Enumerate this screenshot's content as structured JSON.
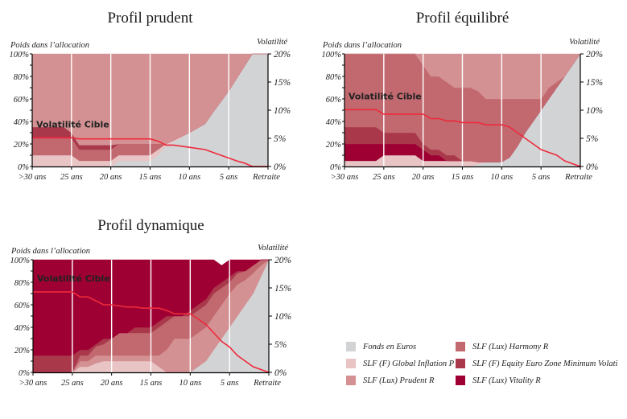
{
  "colors": {
    "fonds_euros": "#d2d3d5",
    "global_inflation": "#e8c4c5",
    "prudent": "#d49193",
    "harmony": "#c1696f",
    "equity_min_vol": "#a9384b",
    "vitality": "#9e0033",
    "volatility_line": "#ee2a3c",
    "target_label": "#ffffff"
  },
  "legend": [
    {
      "key": "fonds_euros",
      "label": "Fonds en Euros"
    },
    {
      "key": "global_inflation",
      "label": "SLF (F) Global Inflation P"
    },
    {
      "key": "prudent",
      "label": "SLF (Lux) Prudent R"
    },
    {
      "key": "harmony",
      "label": "SLF (Lux) Harmony R"
    },
    {
      "key": "equity_min_vol",
      "label": "SLF (F) Equity Euro Zone Minimum Volati"
    },
    {
      "key": "vitality",
      "label": "SLF (Lux) Vitality R"
    }
  ],
  "chart_data": [
    {
      "id": "prudent",
      "type": "area",
      "title": "Profil prudent",
      "ylabel": "Poids dans l’allocation",
      "y2label": "Volatilité",
      "target_label": "Volatilité Cible",
      "xlim": [
        30,
        0
      ],
      "ylim": [
        0,
        100
      ],
      "y2lim": [
        0,
        20
      ],
      "xticks": [
        30,
        25,
        20,
        15,
        10,
        5,
        0
      ],
      "xtick_labels": [
        ">30 ans",
        "25 ans",
        "20 ans",
        "15 ans",
        "10 ans",
        "5 ans",
        "Retraite"
      ],
      "yticks": [
        "0%",
        "20%",
        "40%",
        "60%",
        "80%",
        "100%"
      ],
      "y2ticks": [
        "0%",
        "5%",
        "10%",
        "15%",
        "20%"
      ],
      "x": [
        30,
        26,
        25,
        24,
        20,
        19,
        15,
        14,
        13,
        10,
        8,
        7,
        5,
        4,
        2,
        0
      ],
      "series": [
        {
          "name": "Fonds en Euros",
          "key": "fonds_euros",
          "values": [
            0,
            0,
            0,
            0,
            0,
            5,
            5,
            10,
            18,
            30,
            38,
            48,
            67,
            78,
            100,
            100
          ]
        },
        {
          "name": "SLF (F) Global Inflation P",
          "key": "global_inflation",
          "values": [
            10,
            10,
            10,
            5,
            5,
            5,
            5,
            5,
            2,
            0,
            0,
            0,
            0,
            0,
            0,
            0
          ]
        },
        {
          "name": "SLF (Lux) Harmony R",
          "key": "harmony",
          "values": [
            15,
            15,
            15,
            10,
            10,
            10,
            10,
            5,
            0,
            0,
            0,
            0,
            0,
            0,
            0,
            0
          ]
        },
        {
          "name": "SLF (F) Equity Euro Zone Minimum Volatility",
          "key": "equity_min_vol",
          "values": [
            10,
            10,
            5,
            4,
            4,
            0,
            0,
            0,
            0,
            0,
            0,
            0,
            0,
            0,
            0,
            0
          ]
        },
        {
          "name": "SLF (Lux) Prudent R",
          "key": "prudent",
          "values": [
            65,
            65,
            70,
            81,
            81,
            80,
            80,
            80,
            80,
            70,
            62,
            52,
            33,
            22,
            0,
            0
          ]
        }
      ],
      "volatility": {
        "x": [
          30,
          25,
          24,
          15,
          14,
          13,
          12,
          10,
          8,
          7,
          6,
          5,
          4,
          3,
          2,
          1,
          0
        ],
        "values": [
          5.1,
          5.1,
          4.9,
          4.9,
          4.5,
          3.8,
          3.8,
          3.4,
          3.0,
          2.5,
          2.0,
          1.5,
          1.0,
          0.6,
          0.0,
          0.0,
          0.0
        ]
      }
    },
    {
      "id": "equilibre",
      "type": "area",
      "title": "Profil équilibré",
      "ylabel": "Poids dans l’allocation",
      "y2label": "Volatilité",
      "target_label": "Volatilité Cible",
      "xlim": [
        30,
        0
      ],
      "ylim": [
        0,
        100
      ],
      "y2lim": [
        0,
        20
      ],
      "xticks": [
        30,
        25,
        20,
        15,
        10,
        5,
        0
      ],
      "xtick_labels": [
        ">30 ans",
        "25 ans",
        "20 ans",
        "15 ans",
        "10 ans",
        "5 ans",
        "Retraite"
      ],
      "yticks": [
        "0%",
        "20%",
        "40%",
        "60%",
        "80%",
        "100%"
      ],
      "y2ticks": [
        "0%",
        "5%",
        "10%",
        "15%",
        "20%"
      ],
      "x": [
        30,
        26,
        25,
        21,
        20,
        19,
        18,
        17,
        16,
        15,
        14,
        13,
        12,
        11,
        10,
        9,
        8,
        7,
        6,
        5,
        4,
        3,
        2,
        1,
        0
      ],
      "series": [
        {
          "name": "Fonds en Euros",
          "key": "fonds_euros",
          "values": [
            0,
            0,
            0,
            0,
            0,
            0,
            0,
            0,
            0,
            0,
            0,
            2,
            4,
            4,
            4,
            8,
            18,
            30,
            40,
            50,
            60,
            70,
            80,
            90,
            100
          ]
        },
        {
          "name": "SLF (F) Global Inflation P",
          "key": "global_inflation",
          "values": [
            5,
            5,
            10,
            10,
            5,
            5,
            5,
            5,
            5,
            5,
            5,
            2,
            0,
            0,
            0,
            0,
            0,
            0,
            0,
            0,
            0,
            0,
            0,
            0,
            0
          ]
        },
        {
          "name": "SLF (Lux) Vitality R",
          "key": "vitality",
          "values": [
            15,
            15,
            10,
            10,
            10,
            5,
            5,
            0,
            0,
            0,
            0,
            0,
            0,
            0,
            0,
            0,
            0,
            0,
            0,
            0,
            0,
            0,
            0,
            0,
            0
          ]
        },
        {
          "name": "SLF (F) Equity Euro Zone Minimum Volatility",
          "key": "equity_min_vol",
          "values": [
            15,
            15,
            10,
            10,
            5,
            5,
            5,
            5,
            5,
            0,
            0,
            0,
            0,
            0,
            0,
            0,
            0,
            0,
            0,
            0,
            0,
            0,
            0,
            0,
            0
          ]
        },
        {
          "name": "SLF (Lux) Harmony R",
          "key": "harmony",
          "values": [
            65,
            65,
            70,
            70,
            70,
            65,
            65,
            65,
            60,
            65,
            65,
            63,
            56,
            56,
            56,
            52,
            42,
            30,
            20,
            10,
            10,
            5,
            0,
            0,
            0
          ]
        },
        {
          "name": "SLF (Lux) Prudent R",
          "key": "prudent",
          "values": [
            0,
            0,
            0,
            0,
            10,
            20,
            20,
            25,
            30,
            30,
            30,
            33,
            40,
            40,
            40,
            40,
            40,
            40,
            40,
            40,
            30,
            25,
            20,
            10,
            0
          ]
        }
      ],
      "volatility": {
        "x": [
          30,
          26,
          25,
          20,
          19,
          18,
          17,
          16,
          15,
          13,
          12,
          10,
          9,
          8,
          7,
          6,
          5,
          4,
          3,
          2,
          1,
          0
        ],
        "values": [
          10.1,
          10.1,
          9.3,
          9.3,
          8.5,
          8.5,
          8.1,
          8.1,
          7.8,
          7.8,
          7.4,
          7.4,
          7.0,
          6.0,
          5.0,
          4.0,
          3.0,
          2.5,
          2.0,
          1.0,
          0.5,
          0.0
        ]
      }
    },
    {
      "id": "dynamique",
      "type": "area",
      "title": "Profil dynamique",
      "ylabel": "Poids dans l’allocation",
      "y2label": "Volatilité",
      "target_label": "Volatilité Cible",
      "xlim": [
        30,
        0
      ],
      "ylim": [
        0,
        100
      ],
      "y2lim": [
        0,
        20
      ],
      "xticks": [
        30,
        25,
        20,
        15,
        10,
        5,
        0
      ],
      "xtick_labels": [
        ">30 ans",
        "25 ans",
        "20 ans",
        "15 ans",
        "10 ans",
        "5 ans",
        "Retraite"
      ],
      "yticks": [
        "0%",
        "20%",
        "40%",
        "60%",
        "80%",
        "100%"
      ],
      "y2ticks": [
        "0%",
        "5%",
        "10%",
        "15%",
        "20%"
      ],
      "x": [
        30,
        25,
        24,
        23,
        22,
        21,
        20,
        19,
        18,
        17,
        16,
        15,
        14,
        13,
        12,
        11,
        10,
        9,
        8,
        7,
        6,
        5,
        4,
        3,
        2,
        1,
        0
      ],
      "series": [
        {
          "name": "Fonds en Euros",
          "key": "fonds_euros",
          "values": [
            0,
            0,
            0,
            0,
            0,
            0,
            0,
            0,
            0,
            0,
            0,
            0,
            0,
            0,
            0,
            0,
            0,
            5,
            10,
            20,
            30,
            40,
            50,
            60,
            70,
            85,
            100
          ]
        },
        {
          "name": "SLF (F) Global Inflation P",
          "key": "global_inflation",
          "values": [
            0,
            0,
            5,
            5,
            8,
            10,
            10,
            10,
            10,
            10,
            10,
            10,
            5,
            0,
            0,
            0,
            0,
            0,
            0,
            0,
            0,
            0,
            0,
            0,
            0,
            0,
            0
          ]
        },
        {
          "name": "SLF (Lux) Prudent R",
          "key": "prudent",
          "values": [
            0,
            0,
            5,
            5,
            7,
            5,
            5,
            5,
            5,
            5,
            5,
            5,
            10,
            20,
            30,
            30,
            30,
            30,
            30,
            30,
            30,
            30,
            28,
            22,
            18,
            10,
            0
          ]
        },
        {
          "name": "SLF (Lux) Harmony R",
          "key": "harmony",
          "values": [
            0,
            0,
            5,
            5,
            8,
            10,
            15,
            20,
            20,
            20,
            20,
            20,
            25,
            25,
            20,
            20,
            20,
            20,
            20,
            20,
            15,
            10,
            10,
            8,
            7,
            5,
            0
          ]
        },
        {
          "name": "SLF (F) Equity Euro Zone Minimum Volatility",
          "key": "equity_min_vol",
          "values": [
            15,
            15,
            5,
            5,
            2,
            5,
            0,
            0,
            0,
            5,
            5,
            5,
            5,
            5,
            0,
            0,
            5,
            5,
            5,
            5,
            5,
            5,
            2,
            0,
            0,
            0,
            0
          ]
        },
        {
          "name": "SLF (Lux) Vitality R",
          "key": "vitality",
          "values": [
            85,
            85,
            80,
            80,
            75,
            70,
            70,
            65,
            65,
            60,
            60,
            60,
            55,
            50,
            50,
            50,
            45,
            40,
            35,
            25,
            15,
            15,
            10,
            10,
            5,
            0,
            0
          ]
        }
      ],
      "volatility": {
        "x": [
          30,
          25,
          24,
          23,
          21,
          20,
          18,
          17,
          16,
          14,
          13,
          12,
          10,
          9,
          8,
          7,
          6,
          5,
          4,
          3,
          2,
          1,
          0
        ],
        "values": [
          14.3,
          14.3,
          13.4,
          13.4,
          12.0,
          12.0,
          11.6,
          11.6,
          11.4,
          11.4,
          11.0,
          10.4,
          10.4,
          9.5,
          8.5,
          7.0,
          5.5,
          4.5,
          3.0,
          2.0,
          1.0,
          0.5,
          0.0
        ]
      }
    }
  ]
}
